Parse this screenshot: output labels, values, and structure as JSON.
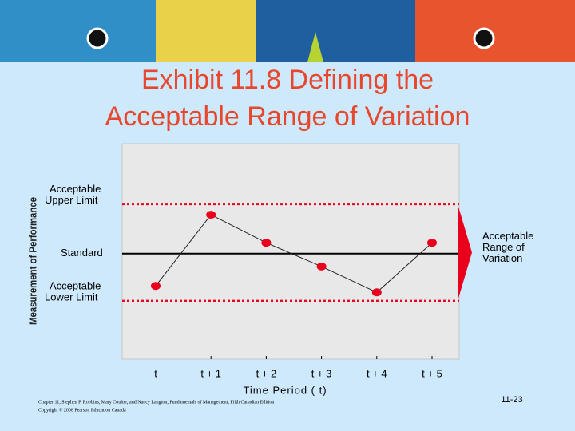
{
  "title": [
    "Exhibit 11.8 Defining the",
    "Acceptable Range of Variation"
  ],
  "chart_data": {
    "type": "line",
    "y_label": "Measurement of Performance",
    "x_label": "Time Period ( t)",
    "categories": [
      "t",
      "t + 1",
      "t + 2",
      "t + 3",
      "t + 4",
      "t + 5"
    ],
    "values": [
      34,
      67,
      54,
      43,
      31,
      54
    ],
    "ylim": [
      0,
      100
    ],
    "color": "#e8001c",
    "reference_lines": [
      {
        "label": [
          "Acceptable",
          "Upper Limit"
        ],
        "value": 72,
        "style": "dotted",
        "color": "#e8001c"
      },
      {
        "label": [
          "Standard"
        ],
        "value": 49,
        "style": "solid",
        "color": "#000000"
      },
      {
        "label": [
          "Acceptable",
          "Lower Limit"
        ],
        "value": 27,
        "style": "dotted",
        "color": "#e8001c"
      }
    ],
    "range_label": [
      "Acceptable",
      "Range of",
      "Variation"
    ]
  },
  "footer": {
    "citation": "Chapter 11, Stephen P. Robbins, Mary Coulter, and Nancy Langton, Fundamentals of Management, Fifth Canadian Edition",
    "copyright": "Copyright © 2008 Pearson Education Canada",
    "page": "11-23"
  }
}
